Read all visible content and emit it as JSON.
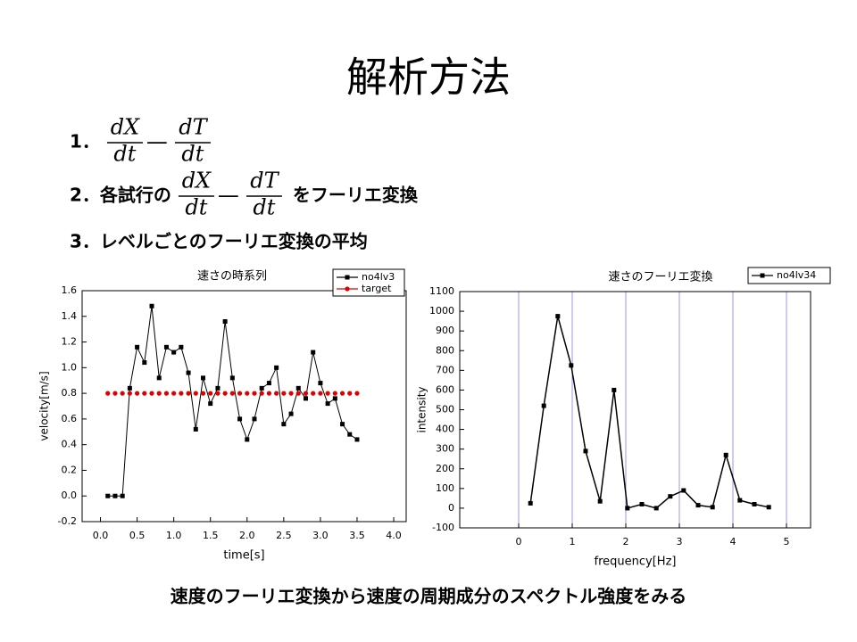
{
  "title": "解析方法",
  "items": [
    {
      "prefix": "1．",
      "formula": {
        "a_num": "dX",
        "a_den": "dt",
        "op": "—",
        "b_num": "dT",
        "b_den": "dt"
      }
    },
    {
      "prefix": "2．各試行の",
      "formula": {
        "a_num": "dX",
        "a_den": "dt",
        "op": "—",
        "b_num": "dT",
        "b_den": "dt"
      },
      "suffix": "をフーリエ変換"
    },
    {
      "prefix": "3．レベルごとのフーリエ変換の平均"
    }
  ],
  "caption": "速度のフーリエ変換から速度の周期成分のスペクトル強度をみる",
  "chart_data": [
    {
      "type": "line",
      "title": "速さの時系列",
      "x_label": "time[s]",
      "y_label": "velocity[m/s]",
      "x": [
        0.1,
        0.2,
        0.3,
        0.4,
        0.5,
        0.6,
        0.7,
        0.8,
        0.9,
        1.0,
        1.1,
        1.2,
        1.3,
        1.4,
        1.5,
        1.6,
        1.7,
        1.8,
        1.9,
        2.0,
        2.1,
        2.2,
        2.3,
        2.4,
        2.5,
        2.6,
        2.7,
        2.8,
        2.9,
        3.0,
        3.1,
        3.2,
        3.3,
        3.4,
        3.5
      ],
      "series": [
        {
          "name": "no4lv3",
          "color": "#000000",
          "marker": "square",
          "values": [
            0,
            0,
            0,
            0.84,
            1.16,
            1.04,
            1.48,
            0.92,
            1.16,
            1.12,
            1.16,
            0.96,
            0.52,
            0.92,
            0.72,
            0.84,
            1.36,
            0.92,
            0.6,
            0.44,
            0.6,
            0.84,
            0.88,
            1.0,
            0.56,
            0.64,
            0.84,
            0.76,
            1.12,
            0.88,
            0.72,
            0.76,
            0.56,
            0.48,
            0.44
          ]
        },
        {
          "name": "target",
          "color": "#e00000",
          "marker": "circle",
          "values": [
            0.8,
            0.8,
            0.8,
            0.8,
            0.8,
            0.8,
            0.8,
            0.8,
            0.8,
            0.8,
            0.8,
            0.8,
            0.8,
            0.8,
            0.8,
            0.8,
            0.8,
            0.8,
            0.8,
            0.8,
            0.8,
            0.8,
            0.8,
            0.8,
            0.8,
            0.8,
            0.8,
            0.8,
            0.8,
            0.8,
            0.8,
            0.8,
            0.8,
            0.8,
            0.8
          ]
        }
      ],
      "xlim": [
        -0.25,
        4.17
      ],
      "ylim": [
        -0.2,
        1.6
      ],
      "xticks": [
        {
          "value": 0,
          "label": "0.0"
        },
        0.5,
        {
          "value": 1,
          "label": "1.0"
        },
        1.5,
        {
          "value": 2,
          "label": "2.0"
        },
        2.5,
        {
          "value": 3,
          "label": "3.0"
        },
        3.5,
        {
          "value": 4,
          "label": "4.0"
        }
      ],
      "yticks": [
        -0.2,
        {
          "value": 0,
          "label": "0.0"
        },
        0.2,
        0.4,
        0.6,
        0.8,
        {
          "value": 1,
          "label": "1.0"
        },
        1.2,
        1.4,
        1.6
      ],
      "grid": false
    },
    {
      "type": "line",
      "title": "速さのフーリエ変換",
      "x_label": "frequency[Hz]",
      "y_label": "intensity",
      "x": [
        0.22,
        0.47,
        0.73,
        0.98,
        1.25,
        1.52,
        1.78,
        2.03,
        2.3,
        2.57,
        2.83,
        3.08,
        3.35,
        3.62,
        3.87,
        4.13,
        4.4,
        4.67
      ],
      "series": [
        {
          "name": "no4lv34",
          "color": "#000000",
          "marker": "square",
          "values": [
            25,
            520,
            975,
            725,
            290,
            35,
            600,
            0,
            20,
            0,
            60,
            90,
            15,
            5,
            270,
            40,
            20,
            5
          ]
        }
      ],
      "xlim": [
        -1.1,
        5.45
      ],
      "ylim": [
        -100,
        1100
      ],
      "xticks": [
        0,
        1,
        2,
        3,
        4,
        5
      ],
      "yticks": [
        -100,
        0,
        100,
        200,
        300,
        400,
        500,
        600,
        700,
        800,
        900,
        1000,
        1100
      ],
      "grid": true,
      "grid_color": "#9999dd"
    }
  ]
}
